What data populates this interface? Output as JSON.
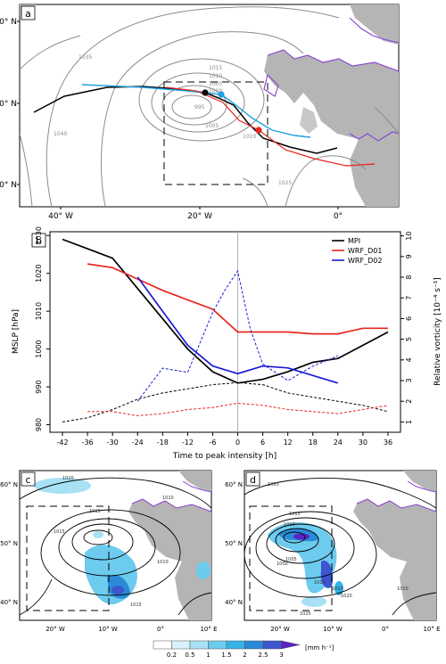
{
  "panel_a": {
    "label": "a",
    "lat_labels": [
      "60° N",
      "50° N",
      "40° N"
    ],
    "lon_labels": [
      "40° W",
      "20° W",
      "0°"
    ],
    "isobar_labels": [
      "1035",
      "1015",
      "1010",
      "1005",
      "1000",
      "995",
      "1005",
      "1010",
      "1040",
      "1025"
    ],
    "track_colors": {
      "MPI": "#000000",
      "WRF_D01": "#e8261d",
      "WRF_D02": "#1fa0e0"
    }
  },
  "panel_b": {
    "label": "b",
    "xlabel": "Time to peak intensity [h]",
    "ylabel_left": "MSLP [hPa]",
    "ylabel_right": "Relative vorticity [10⁻⁴ s⁻¹]",
    "xticks": [
      "-42",
      "-36",
      "-30",
      "-24",
      "-18",
      "-12",
      "-6",
      "0",
      "6",
      "12",
      "18",
      "24",
      "30",
      "36"
    ],
    "yticks_left": [
      "980",
      "990",
      "1000",
      "1010",
      "1020",
      "1030"
    ],
    "yticks_right": [
      "1",
      "2",
      "3",
      "4",
      "5",
      "6",
      "7",
      "8",
      "9",
      "10"
    ],
    "legend": [
      {
        "name": "MPI",
        "color": "#000000"
      },
      {
        "name": "WRF_D01",
        "color": "#e8261d"
      },
      {
        "name": "WRF_D02",
        "color": "#1b1bd6"
      }
    ]
  },
  "panel_c": {
    "label": "c",
    "lat_labels": [
      "60° N",
      "50° N",
      "40° N"
    ],
    "lon_labels": [
      "20° W",
      "10° W",
      "0°",
      "10° E"
    ],
    "isobar_labels": [
      "1020",
      "1010",
      "1015",
      "1015",
      "1010",
      "1015"
    ]
  },
  "panel_d": {
    "label": "d",
    "lat_labels": [
      "60° N",
      "50° N",
      "40° N"
    ],
    "lon_labels": [
      "20° W",
      "10° W",
      "0°",
      "10° E"
    ],
    "isobar_labels": [
      "1020",
      "1015",
      "1010",
      "1005",
      "1000",
      "1010",
      "1015",
      "1020",
      "1025",
      "1010"
    ]
  },
  "colorbar": {
    "ticks": [
      "0.2",
      "0.5",
      "1",
      "1.5",
      "2",
      "2.5",
      "3"
    ],
    "unit": "[mm h⁻¹]",
    "colors": [
      "#ffffff",
      "#d9f2fb",
      "#a8e1f5",
      "#6ccbee",
      "#33b3e6",
      "#2b8ad8",
      "#3d55cf",
      "#5b22c4"
    ]
  },
  "chart_data": {
    "type": "line",
    "x": [
      -42,
      -36,
      -30,
      -24,
      -18,
      -12,
      -6,
      0,
      6,
      12,
      18,
      24,
      30,
      36
    ],
    "xlabel": "Time to peak intensity [h]",
    "ylabel": "MSLP [hPa]",
    "xlim": [
      -45,
      39
    ],
    "ylim": [
      978,
      1031
    ],
    "y2label": "Relative vorticity [10⁻⁴ s⁻¹]",
    "y2lim": [
      0.5,
      10.2
    ],
    "grid": false,
    "legend_position": "top-right",
    "series": [
      {
        "name": "MPI",
        "axis": "left",
        "style": "solid",
        "color": "#000000",
        "x": [
          -42,
          -36,
          -30,
          -24,
          -18,
          -12,
          -6,
          0,
          6,
          12,
          18,
          24,
          30,
          36
        ],
        "values": [
          1029,
          1026.5,
          1024,
          1016,
          1008,
          1000,
          994,
          991,
          992,
          994,
          996.5,
          997.5,
          1001,
          1004.5
        ]
      },
      {
        "name": "WRF_D01",
        "axis": "left",
        "style": "solid",
        "color": "#e8261d",
        "x": [
          -36,
          -30,
          -24,
          -18,
          -12,
          -6,
          0,
          6,
          12,
          18,
          24,
          30,
          36
        ],
        "values": [
          1022.5,
          1021.5,
          1018.5,
          1015.5,
          1013,
          1010.5,
          1004.5,
          1004.5,
          1004.5,
          1004,
          1004,
          1005.5,
          1005.5
        ]
      },
      {
        "name": "WRF_D02",
        "axis": "left",
        "style": "solid",
        "color": "#1b1bd6",
        "x": [
          -24,
          -18,
          -12,
          -6,
          0,
          6,
          12,
          18,
          24
        ],
        "values": [
          1019,
          1010,
          1001,
          995.5,
          993.5,
          995.5,
          995,
          993,
          991
        ]
      },
      {
        "name": "MPI",
        "axis": "right",
        "style": "dashed",
        "color": "#000000",
        "x": [
          -42,
          -36,
          -30,
          -24,
          -18,
          -12,
          -6,
          0,
          6,
          12,
          18,
          24,
          30,
          36
        ],
        "values": [
          1.0,
          1.2,
          1.6,
          2.1,
          2.4,
          2.6,
          2.8,
          2.9,
          2.8,
          2.4,
          2.2,
          2.0,
          1.8,
          1.5
        ]
      },
      {
        "name": "WRF_D01",
        "axis": "right",
        "style": "dashed",
        "color": "#e8261d",
        "x": [
          -36,
          -30,
          -24,
          -18,
          -12,
          -6,
          0,
          6,
          12,
          18,
          24,
          30,
          36
        ],
        "values": [
          1.5,
          1.5,
          1.3,
          1.4,
          1.6,
          1.7,
          1.9,
          1.8,
          1.6,
          1.5,
          1.4,
          1.6,
          1.8
        ]
      },
      {
        "name": "WRF_D02",
        "axis": "right",
        "style": "dashed",
        "color": "#1b1bd6",
        "x": [
          -24,
          -18,
          -12,
          -6,
          -3,
          0,
          3,
          6,
          12,
          18,
          24
        ],
        "values": [
          2.0,
          3.6,
          3.4,
          6.3,
          7.4,
          8.3,
          5.5,
          3.8,
          3.0,
          3.7,
          4.2
        ]
      }
    ]
  }
}
